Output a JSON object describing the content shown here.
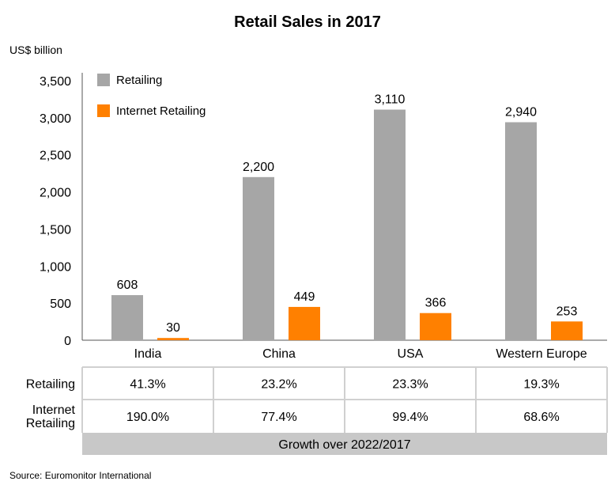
{
  "chart_data": {
    "type": "bar",
    "title": "Retail Sales in 2017",
    "ylabel": "US$ billion",
    "xlabel": "",
    "ylim": [
      0,
      3500
    ],
    "yticks": [
      "0",
      "500",
      "1,000",
      "1,500",
      "2,000",
      "2,500",
      "3,000",
      "3,500"
    ],
    "ytick_values": [
      0,
      500,
      1000,
      1500,
      2000,
      2500,
      3000,
      3500
    ],
    "grid": false,
    "legend_position": "top-left",
    "categories": [
      "India",
      "China",
      "USA",
      "Western Europe"
    ],
    "series": [
      {
        "name": "Retailing",
        "color": "#a6a6a6",
        "values": [
          608,
          2200,
          3110,
          2940
        ],
        "labels": [
          "608",
          "2,200",
          "3,110",
          "2,940"
        ]
      },
      {
        "name": "Internet Retailing",
        "color": "#ff8000",
        "values": [
          30,
          449,
          366,
          253
        ],
        "labels": [
          "30",
          "449",
          "366",
          "253"
        ]
      }
    ],
    "table": {
      "rows": [
        {
          "label": "Retailing",
          "values": [
            "41.3%",
            "23.2%",
            "23.3%",
            "19.3%"
          ]
        },
        {
          "label_lines": [
            "Internet",
            "Retailing"
          ],
          "values": [
            "190.0%",
            "77.4%",
            "99.4%",
            "68.6%"
          ]
        }
      ],
      "footer": "Growth over 2022/2017"
    },
    "source": "Source: Euromonitor International"
  }
}
